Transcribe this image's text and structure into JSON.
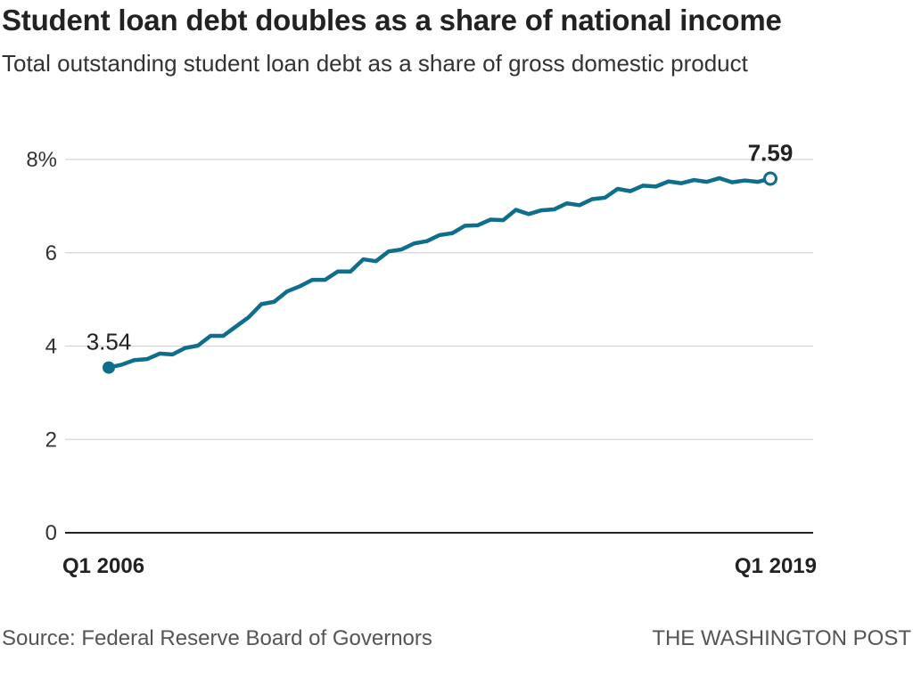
{
  "title": "Student loan debt doubles as a share of national income",
  "subtitle": "Total outstanding student loan debt as a share of gross domestic product",
  "source": "Source: Federal Reserve Board of Governors",
  "credit": "THE WASHINGTON POST",
  "colors": {
    "line": "#0f6e8c",
    "grid": "#d4d4d4",
    "axis": "#222222",
    "text": "#222222"
  },
  "chart_data": {
    "type": "line",
    "title": "Student loan debt doubles as a share of national income",
    "subtitle": "Total outstanding student loan debt as a share of gross domestic product",
    "xlabel": "",
    "ylabel": "",
    "ylim": [
      0,
      8
    ],
    "y_ticks": [
      0,
      2,
      4,
      6,
      8
    ],
    "y_tick_labels": [
      "0",
      "2",
      "4",
      "6",
      "8%"
    ],
    "x_tick_labels": [
      "Q1 2006",
      "Q1 2019"
    ],
    "grid": true,
    "x": [
      "Q1 2006",
      "Q2 2006",
      "Q3 2006",
      "Q4 2006",
      "Q1 2007",
      "Q2 2007",
      "Q3 2007",
      "Q4 2007",
      "Q1 2008",
      "Q2 2008",
      "Q3 2008",
      "Q4 2008",
      "Q1 2009",
      "Q2 2009",
      "Q3 2009",
      "Q4 2009",
      "Q1 2010",
      "Q2 2010",
      "Q3 2010",
      "Q4 2010",
      "Q1 2011",
      "Q2 2011",
      "Q3 2011",
      "Q4 2011",
      "Q1 2012",
      "Q2 2012",
      "Q3 2012",
      "Q4 2012",
      "Q1 2013",
      "Q2 2013",
      "Q3 2013",
      "Q4 2013",
      "Q1 2014",
      "Q2 2014",
      "Q3 2014",
      "Q4 2014",
      "Q1 2015",
      "Q2 2015",
      "Q3 2015",
      "Q4 2015",
      "Q1 2016",
      "Q2 2016",
      "Q3 2016",
      "Q4 2016",
      "Q1 2017",
      "Q2 2017",
      "Q3 2017",
      "Q4 2017",
      "Q1 2018",
      "Q2 2018",
      "Q3 2018",
      "Q4 2018",
      "Q1 2019"
    ],
    "series": [
      {
        "values": [
          3.54,
          3.6,
          3.7,
          3.72,
          3.84,
          3.82,
          3.96,
          4.01,
          4.22,
          4.22,
          4.42,
          4.62,
          4.9,
          4.95,
          5.17,
          5.28,
          5.42,
          5.42,
          5.6,
          5.6,
          5.86,
          5.82,
          6.03,
          6.07,
          6.2,
          6.25,
          6.38,
          6.42,
          6.58,
          6.59,
          6.71,
          6.7,
          6.92,
          6.83,
          6.91,
          6.93,
          7.06,
          7.02,
          7.15,
          7.18,
          7.37,
          7.32,
          7.44,
          7.42,
          7.53,
          7.49,
          7.56,
          7.52,
          7.6,
          7.51,
          7.55,
          7.52,
          7.59
        ]
      }
    ],
    "annotations": [
      {
        "label": "3.54",
        "point": "Q1 2006",
        "value": 3.54
      },
      {
        "label": "7.59",
        "point": "Q1 2019",
        "value": 7.59
      }
    ]
  }
}
